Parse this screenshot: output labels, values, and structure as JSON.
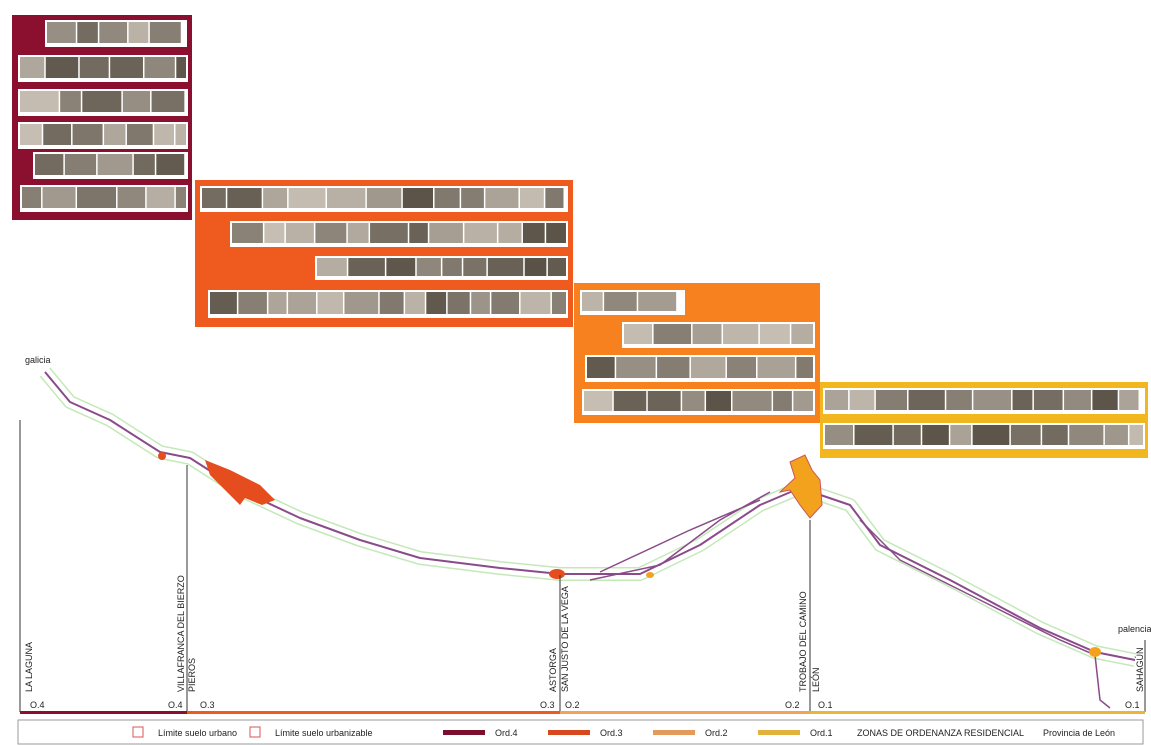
{
  "places": {
    "start": "galicia",
    "end": "palencia"
  },
  "towns": [
    "LA LAGUNA",
    "VILLAFRANCA DEL BIERZO",
    "PIEROS",
    "ASTORGA",
    "SAN JUSTO DE LA VEGA",
    "TROBAJO DEL CAMINO",
    "LEÓN",
    "SAHAGÚN"
  ],
  "zones": [
    {
      "start": "O.4",
      "end": "O.4",
      "color": "#8b1030"
    },
    {
      "start": "O.3",
      "end": "O.3",
      "color": "#ef5a1f"
    },
    {
      "start": "O.2",
      "end": "O.2",
      "color": "#f3a25a"
    },
    {
      "start": "O.1",
      "end": "O.1",
      "color": "#eab735"
    }
  ],
  "legend": {
    "boundaries": [
      "Límite suelo urbano",
      "Límite suelo urbanizable"
    ],
    "ordinances": [
      {
        "label": "Ord.4",
        "color": "#7a0f2e"
      },
      {
        "label": "Ord.3",
        "color": "#d8481f"
      },
      {
        "label": "Ord.2",
        "color": "#e39a5a"
      },
      {
        "label": "Ord.1",
        "color": "#e2b23c"
      }
    ],
    "title": "ZONAS DE ORDENANZA RESIDENCIAL",
    "province": "Provincia de León"
  }
}
